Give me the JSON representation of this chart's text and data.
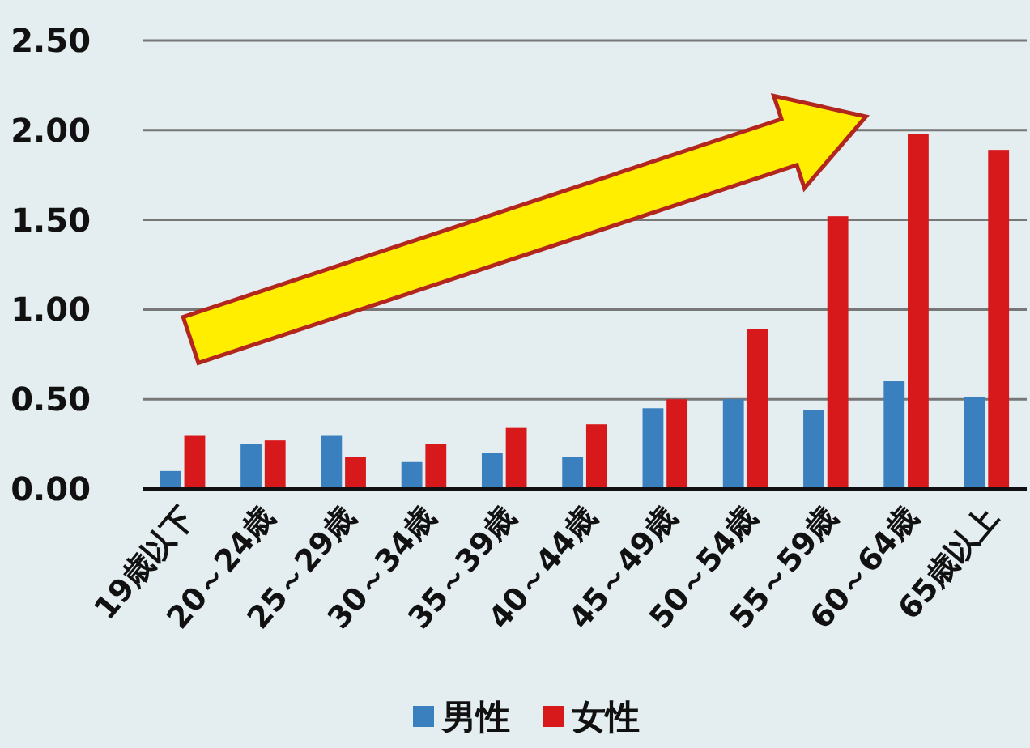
{
  "chart_data": {
    "type": "bar",
    "categories": [
      "19歳以下",
      "20～24歳",
      "25～29歳",
      "30～34歳",
      "35～39歳",
      "40～44歳",
      "45～49歳",
      "50～54歳",
      "55～59歳",
      "60～64歳",
      "65歳以上"
    ],
    "series": [
      {
        "name": "男性",
        "color": "#3a80bf",
        "values": [
          0.1,
          0.25,
          0.3,
          0.15,
          0.2,
          0.18,
          0.45,
          0.5,
          0.44,
          0.6,
          0.51
        ]
      },
      {
        "name": "女性",
        "color": "#d7191c",
        "values": [
          0.3,
          0.27,
          0.18,
          0.25,
          0.34,
          0.36,
          0.5,
          0.89,
          1.52,
          1.98,
          1.89
        ]
      }
    ],
    "ylim": [
      0,
      2.5
    ],
    "yticks": [
      {
        "value": 0,
        "label": "0.00"
      },
      {
        "value": 0.5,
        "label": "0.50"
      },
      {
        "value": 1,
        "label": "1.00"
      },
      {
        "value": 1.5,
        "label": "1.50"
      },
      {
        "value": 2,
        "label": "2.00"
      },
      {
        "value": 2.5,
        "label": "2.50"
      }
    ],
    "grid": "y",
    "legend": "bottom"
  }
}
